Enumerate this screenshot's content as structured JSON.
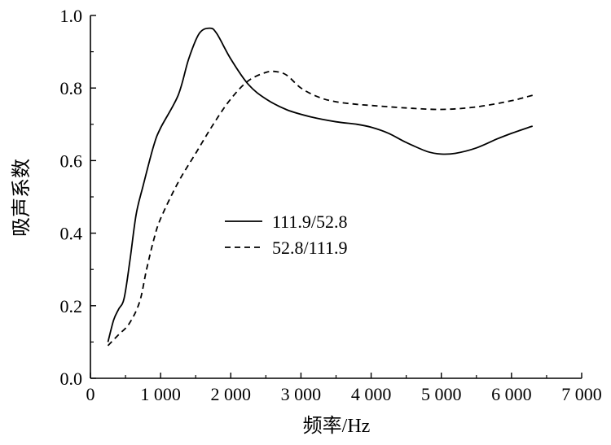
{
  "chart_data": {
    "type": "line",
    "title": "",
    "xlabel": "频率/Hz",
    "ylabel": "吸声系数",
    "xlim": [
      0,
      7000
    ],
    "ylim": [
      0.0,
      1.0
    ],
    "x_ticks": [
      0,
      1000,
      2000,
      3000,
      4000,
      5000,
      6000,
      7000
    ],
    "x_tick_labels": [
      "0",
      "1 000",
      "2 000",
      "3 000",
      "4 000",
      "5 000",
      "6 000",
      "7 000"
    ],
    "y_ticks": [
      0.0,
      0.2,
      0.4,
      0.6,
      0.8,
      1.0
    ],
    "y_tick_labels": [
      "0.0",
      "0.2",
      "0.4",
      "0.6",
      "0.8",
      "1.0"
    ],
    "grid": false,
    "legend_position": "center",
    "series": [
      {
        "name": "111.9/52.8",
        "style": "solid",
        "color": "#000000",
        "x": [
          250,
          330,
          400,
          480,
          560,
          650,
          750,
          900,
          1000,
          1250,
          1400,
          1550,
          1700,
          1800,
          2000,
          2250,
          2500,
          2800,
          3150,
          3500,
          3800,
          4000,
          4250,
          4500,
          4800,
          5000,
          5200,
          5500,
          5800,
          6000,
          6300
        ],
        "y": [
          0.1,
          0.16,
          0.19,
          0.22,
          0.32,
          0.45,
          0.53,
          0.64,
          0.69,
          0.78,
          0.88,
          0.95,
          0.965,
          0.95,
          0.88,
          0.81,
          0.77,
          0.74,
          0.72,
          0.707,
          0.7,
          0.692,
          0.675,
          0.65,
          0.625,
          0.618,
          0.62,
          0.635,
          0.66,
          0.675,
          0.695
        ]
      },
      {
        "name": "52.8/111.9",
        "style": "dashed",
        "color": "#000000",
        "x": [
          250,
          400,
          550,
          700,
          800,
          900,
          1000,
          1250,
          1500,
          1750,
          2000,
          2250,
          2500,
          2650,
          2800,
          3000,
          3250,
          3500,
          3800,
          4000,
          4500,
          5000,
          5500,
          6000,
          6300
        ],
        "y": [
          0.09,
          0.12,
          0.15,
          0.21,
          0.3,
          0.38,
          0.44,
          0.54,
          0.62,
          0.7,
          0.77,
          0.82,
          0.843,
          0.845,
          0.835,
          0.8,
          0.775,
          0.762,
          0.755,
          0.752,
          0.745,
          0.741,
          0.748,
          0.765,
          0.78
        ]
      }
    ]
  }
}
